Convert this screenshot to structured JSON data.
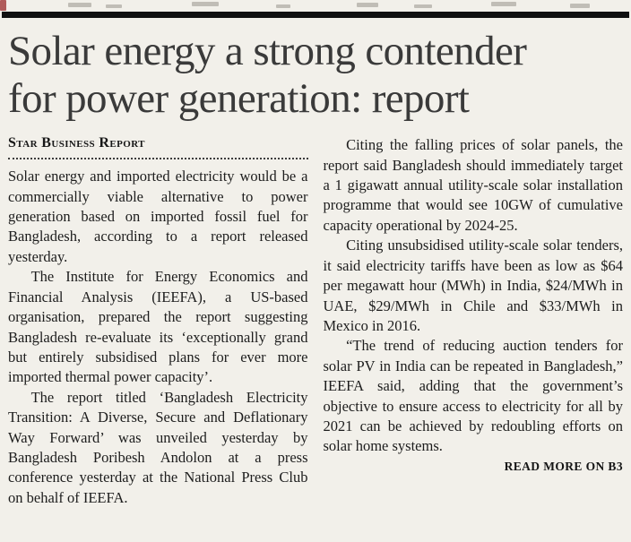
{
  "style": {
    "paper_background": "#f2f0ea",
    "rule_color": "#101010",
    "headline_color": "#3a3a3a",
    "body_text_color": "#1d1d1d",
    "remnant_red_color": "#a84b4b"
  },
  "article": {
    "headline_lines": [
      "Solar energy a strong contender",
      "for power generation: report"
    ],
    "byline": "Star Business Report",
    "left_paragraphs": [
      "Solar energy and imported electricity would be a commercially viable alternative to power generation based on imported fossil fuel for Bangladesh, according to a report released yesterday.",
      "The Institute for Energy Economics and Financial Analysis (IEEFA), a US-based organisation, prepared the report suggesting Bangladesh re-evaluate its ‘exceptionally grand but entirely subsidised plans for ever more imported thermal power capacity’.",
      "The report titled ‘Bangladesh Electricity Transition: A Diverse, Secure and Deflationary Way Forward’ was unveiled yesterday by Bangladesh Poribesh Andolon at a press conference yesterday at the National Press Club on behalf of IEEFA."
    ],
    "right_paragraphs": [
      "Citing the falling prices of solar panels, the report said Bangladesh should immediately target a 1 gigawatt annual utility-scale solar installation programme that would see 10GW of cumulative capacity operational by 2024-25.",
      "Citing unsubsidised utility-scale solar tenders, it said electricity tariffs have been as low as $64 per megawatt hour (MWh) in India, $24/MWh in UAE, $29/MWh in Chile and $33/MWh in Mexico in 2016.",
      "“The trend of reducing auction tenders for solar PV in India can be repeated in Bangladesh,” IEEFA said, adding that the government’s objective to ensure access to electricity for all by 2021 can be achieved by redoubling efforts on solar home systems."
    ],
    "read_more": "READ MORE ON B3"
  }
}
